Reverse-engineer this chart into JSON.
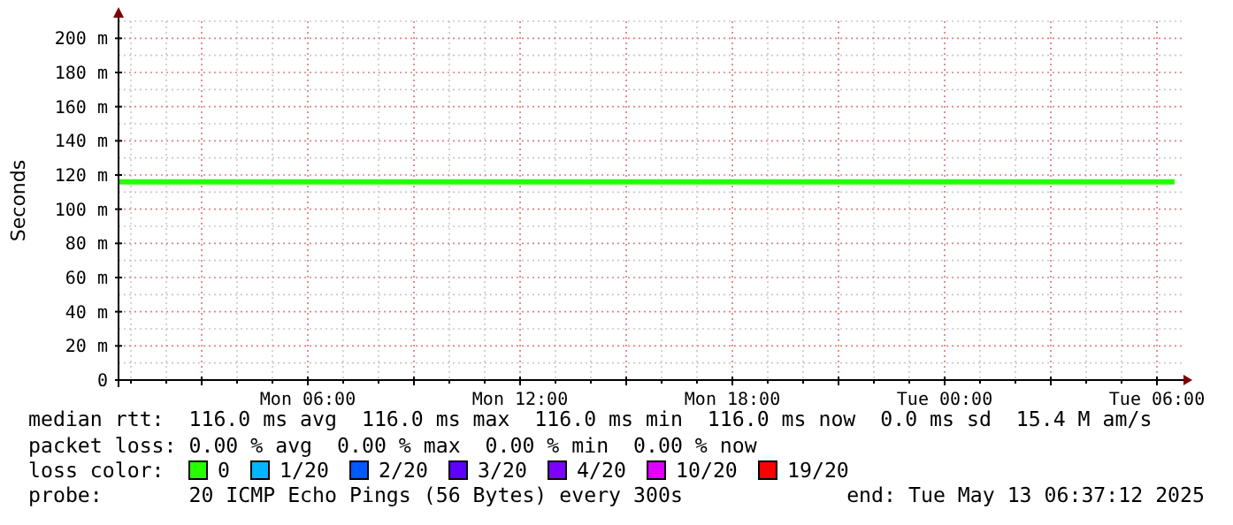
{
  "chart_data": {
    "type": "line",
    "ylabel": "Seconds",
    "x": [
      "2025-05-12T00:39",
      "2025-05-13T06:30"
    ],
    "xlim": [
      "2025-05-12T00:39",
      "2025-05-13T06:45"
    ],
    "xticks": [
      {
        "value": "2025-05-12T03:00",
        "label": null
      },
      {
        "value": "2025-05-12T06:00",
        "label": "Mon 06:00"
      },
      {
        "value": "2025-05-12T09:00",
        "label": null
      },
      {
        "value": "2025-05-12T12:00",
        "label": "Mon 12:00"
      },
      {
        "value": "2025-05-12T15:00",
        "label": null
      },
      {
        "value": "2025-05-12T18:00",
        "label": "Mon 18:00"
      },
      {
        "value": "2025-05-12T21:00",
        "label": null
      },
      {
        "value": "2025-05-13T00:00",
        "label": "Tue 00:00"
      },
      {
        "value": "2025-05-13T03:00",
        "label": null
      },
      {
        "value": "2025-05-13T06:00",
        "label": "Tue 06:00"
      }
    ],
    "ylim": [
      0,
      210
    ],
    "yticks": [
      0,
      {
        "value": 20,
        "label": "20 m"
      },
      {
        "value": 40,
        "label": "40 m"
      },
      {
        "value": 60,
        "label": "60 m"
      },
      {
        "value": 80,
        "label": "80 m"
      },
      {
        "value": 100,
        "label": "100 m"
      },
      {
        "value": 120,
        "label": "120 m"
      },
      {
        "value": 140,
        "label": "140 m"
      },
      {
        "value": 160,
        "label": "160 m"
      },
      {
        "value": 180,
        "label": "180 m"
      },
      {
        "value": 200,
        "label": "200 m"
      }
    ],
    "grid": true,
    "legend": "bottom",
    "legend_title": "loss color:",
    "series": [
      {
        "name": "0",
        "color": "#26ff00",
        "values": [
          116,
          116
        ]
      },
      {
        "name": "1/20",
        "color": "#00b8ff",
        "values": [
          null,
          null
        ]
      },
      {
        "name": "2/20",
        "color": "#0059ff",
        "values": [
          null,
          null
        ]
      },
      {
        "name": "3/20",
        "color": "#5e00ff",
        "values": [
          null,
          null
        ]
      },
      {
        "name": "4/20",
        "color": "#7e00ff",
        "values": [
          null,
          null
        ]
      },
      {
        "name": "10/20",
        "color": "#dd00ff",
        "values": [
          null,
          null
        ]
      },
      {
        "name": "19/20",
        "color": "#ff0000",
        "values": [
          null,
          null
        ]
      }
    ],
    "annotations": [
      "median rtt:  116.0 ms avg  116.0 ms max  116.0 ms min  116.0 ms now  0.0 ms sd  15.4 M am/s",
      "packet loss: 0.00 % avg  0.00 % max  0.00 % min  0.00 % now",
      "probe:       20 ICMP Echo Pings (56 Bytes) every 300s",
      "end: Tue May 13 06:37:12 2025"
    ]
  }
}
